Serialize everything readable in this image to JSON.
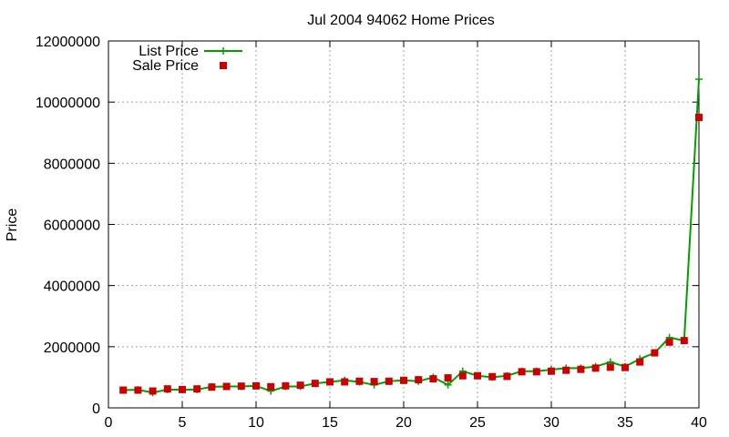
{
  "chart_data": {
    "type": "line",
    "title": "Jul 2004 94062 Home Prices",
    "xlabel": "",
    "ylabel": "Price",
    "xlim": [
      0,
      40
    ],
    "ylim": [
      0,
      12000000
    ],
    "xticks": [
      0,
      5,
      10,
      15,
      20,
      25,
      30,
      35,
      40
    ],
    "yticks": [
      0,
      2000000,
      4000000,
      6000000,
      8000000,
      10000000,
      12000000
    ],
    "grid": true,
    "legend_position": "top-left",
    "series": [
      {
        "name": "List Price",
        "style": "line-points",
        "marker": "plus",
        "color": "#00a000",
        "x": [
          1,
          2,
          3,
          4,
          5,
          6,
          7,
          8,
          9,
          10,
          11,
          12,
          13,
          14,
          15,
          16,
          17,
          18,
          19,
          20,
          21,
          22,
          23,
          24,
          25,
          26,
          27,
          28,
          29,
          30,
          31,
          32,
          33,
          34,
          35,
          36,
          37,
          38,
          39,
          40
        ],
        "values": [
          580000,
          590000,
          500000,
          600000,
          590000,
          600000,
          690000,
          700000,
          700000,
          720000,
          550000,
          700000,
          700000,
          800000,
          850000,
          900000,
          850000,
          750000,
          870000,
          900000,
          870000,
          1000000,
          750000,
          1200000,
          1050000,
          1000000,
          1050000,
          1200000,
          1200000,
          1250000,
          1300000,
          1300000,
          1350000,
          1500000,
          1350000,
          1600000,
          1800000,
          2300000,
          2200000,
          10750000
        ]
      },
      {
        "name": "Sale Price",
        "style": "points",
        "marker": "square",
        "color": "#cc0000",
        "x": [
          1,
          2,
          3,
          4,
          5,
          6,
          7,
          8,
          9,
          10,
          11,
          12,
          13,
          14,
          15,
          16,
          17,
          18,
          19,
          20,
          21,
          22,
          23,
          24,
          25,
          26,
          27,
          28,
          29,
          30,
          31,
          32,
          33,
          34,
          35,
          36,
          37,
          38,
          39,
          40
        ],
        "values": [
          580000,
          580000,
          550000,
          620000,
          600000,
          620000,
          680000,
          700000,
          710000,
          720000,
          690000,
          720000,
          740000,
          800000,
          850000,
          850000,
          870000,
          860000,
          870000,
          900000,
          920000,
          950000,
          980000,
          1050000,
          1050000,
          1020000,
          1030000,
          1180000,
          1180000,
          1200000,
          1230000,
          1260000,
          1300000,
          1330000,
          1320000,
          1500000,
          1800000,
          2150000,
          2200000,
          9500000
        ]
      }
    ]
  }
}
